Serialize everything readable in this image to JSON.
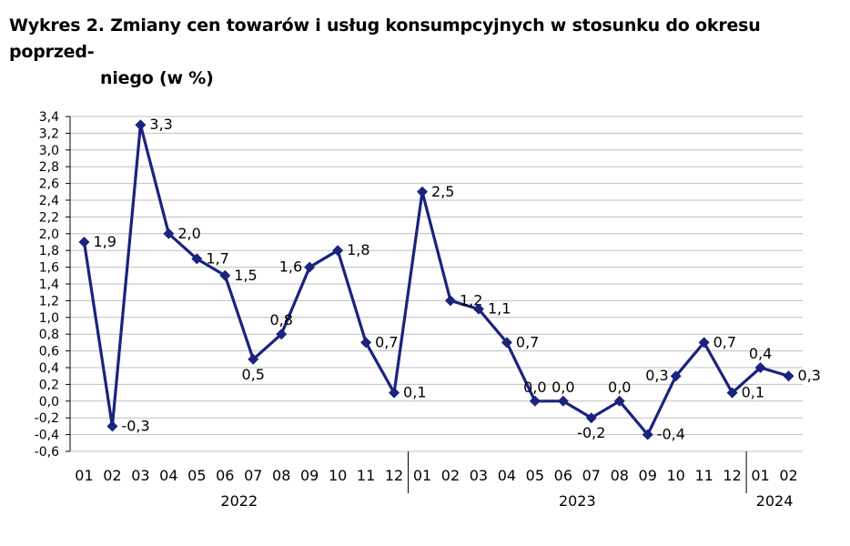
{
  "title": {
    "line1": "Wykres 2. Zmiany cen towarów i usług konsumpcyjnych w stosunku do okresu poprzed-",
    "line2": "niego (w %)"
  },
  "colors": {
    "series": "#1a237e",
    "grid": "#bfbfbf",
    "axis": "#000000"
  },
  "chart_data": {
    "type": "line",
    "title": "Wykres 2. Zmiany cen towarów i usług konsumpcyjnych w stosunku do okresu poprzedniego (w %)",
    "xlabel": "",
    "ylabel": "",
    "ylim": [
      -0.6,
      3.4
    ],
    "ystep": 0.2,
    "y_ticks": [
      "-0,6",
      "-0,4",
      "-0,2",
      "0,0",
      "0,2",
      "0,4",
      "0,6",
      "0,8",
      "1,0",
      "1,2",
      "1,4",
      "1,6",
      "1,8",
      "2,0",
      "2,2",
      "2,4",
      "2,6",
      "2,8",
      "3,0",
      "3,2",
      "3,4"
    ],
    "grid": true,
    "legend": "none",
    "categories": [
      "01",
      "02",
      "03",
      "04",
      "05",
      "06",
      "07",
      "08",
      "09",
      "10",
      "11",
      "12",
      "01",
      "02",
      "03",
      "04",
      "05",
      "06",
      "07",
      "08",
      "09",
      "10",
      "11",
      "12",
      "01",
      "02"
    ],
    "year_groups": [
      {
        "label": "2022",
        "start": 0,
        "end": 11
      },
      {
        "label": "2023",
        "start": 12,
        "end": 23
      },
      {
        "label": "2024",
        "start": 24,
        "end": 25
      }
    ],
    "series": [
      {
        "values": [
          1.9,
          -0.3,
          3.3,
          2.0,
          1.7,
          1.5,
          0.5,
          0.8,
          1.6,
          1.8,
          0.7,
          0.1,
          2.5,
          1.2,
          1.1,
          0.7,
          0.0,
          0.0,
          -0.2,
          0.0,
          -0.4,
          0.3,
          0.7,
          0.1,
          0.4,
          0.3
        ],
        "labels": [
          "1,9",
          "-0,3",
          "3,3",
          "2,0",
          "1,7",
          "1,5",
          "0,5",
          "0,8",
          "1,6",
          "1,8",
          "0,7",
          "0,1",
          "2,5",
          "1,2",
          "1,1",
          "0,7",
          "0,0",
          "0,0",
          "-0,2",
          "0,0",
          "-0,4",
          "0,3",
          "0,7",
          "0,1",
          "0,4",
          "0,3"
        ],
        "label_positions": [
          "right",
          "right",
          "right",
          "right",
          "right",
          "right",
          "below",
          "above",
          "left",
          "right",
          "right",
          "right",
          "right",
          "right",
          "right",
          "right",
          "above",
          "above",
          "below",
          "above",
          "right",
          "left",
          "right",
          "right",
          "above",
          "right"
        ],
        "marker": "diamond"
      }
    ]
  }
}
